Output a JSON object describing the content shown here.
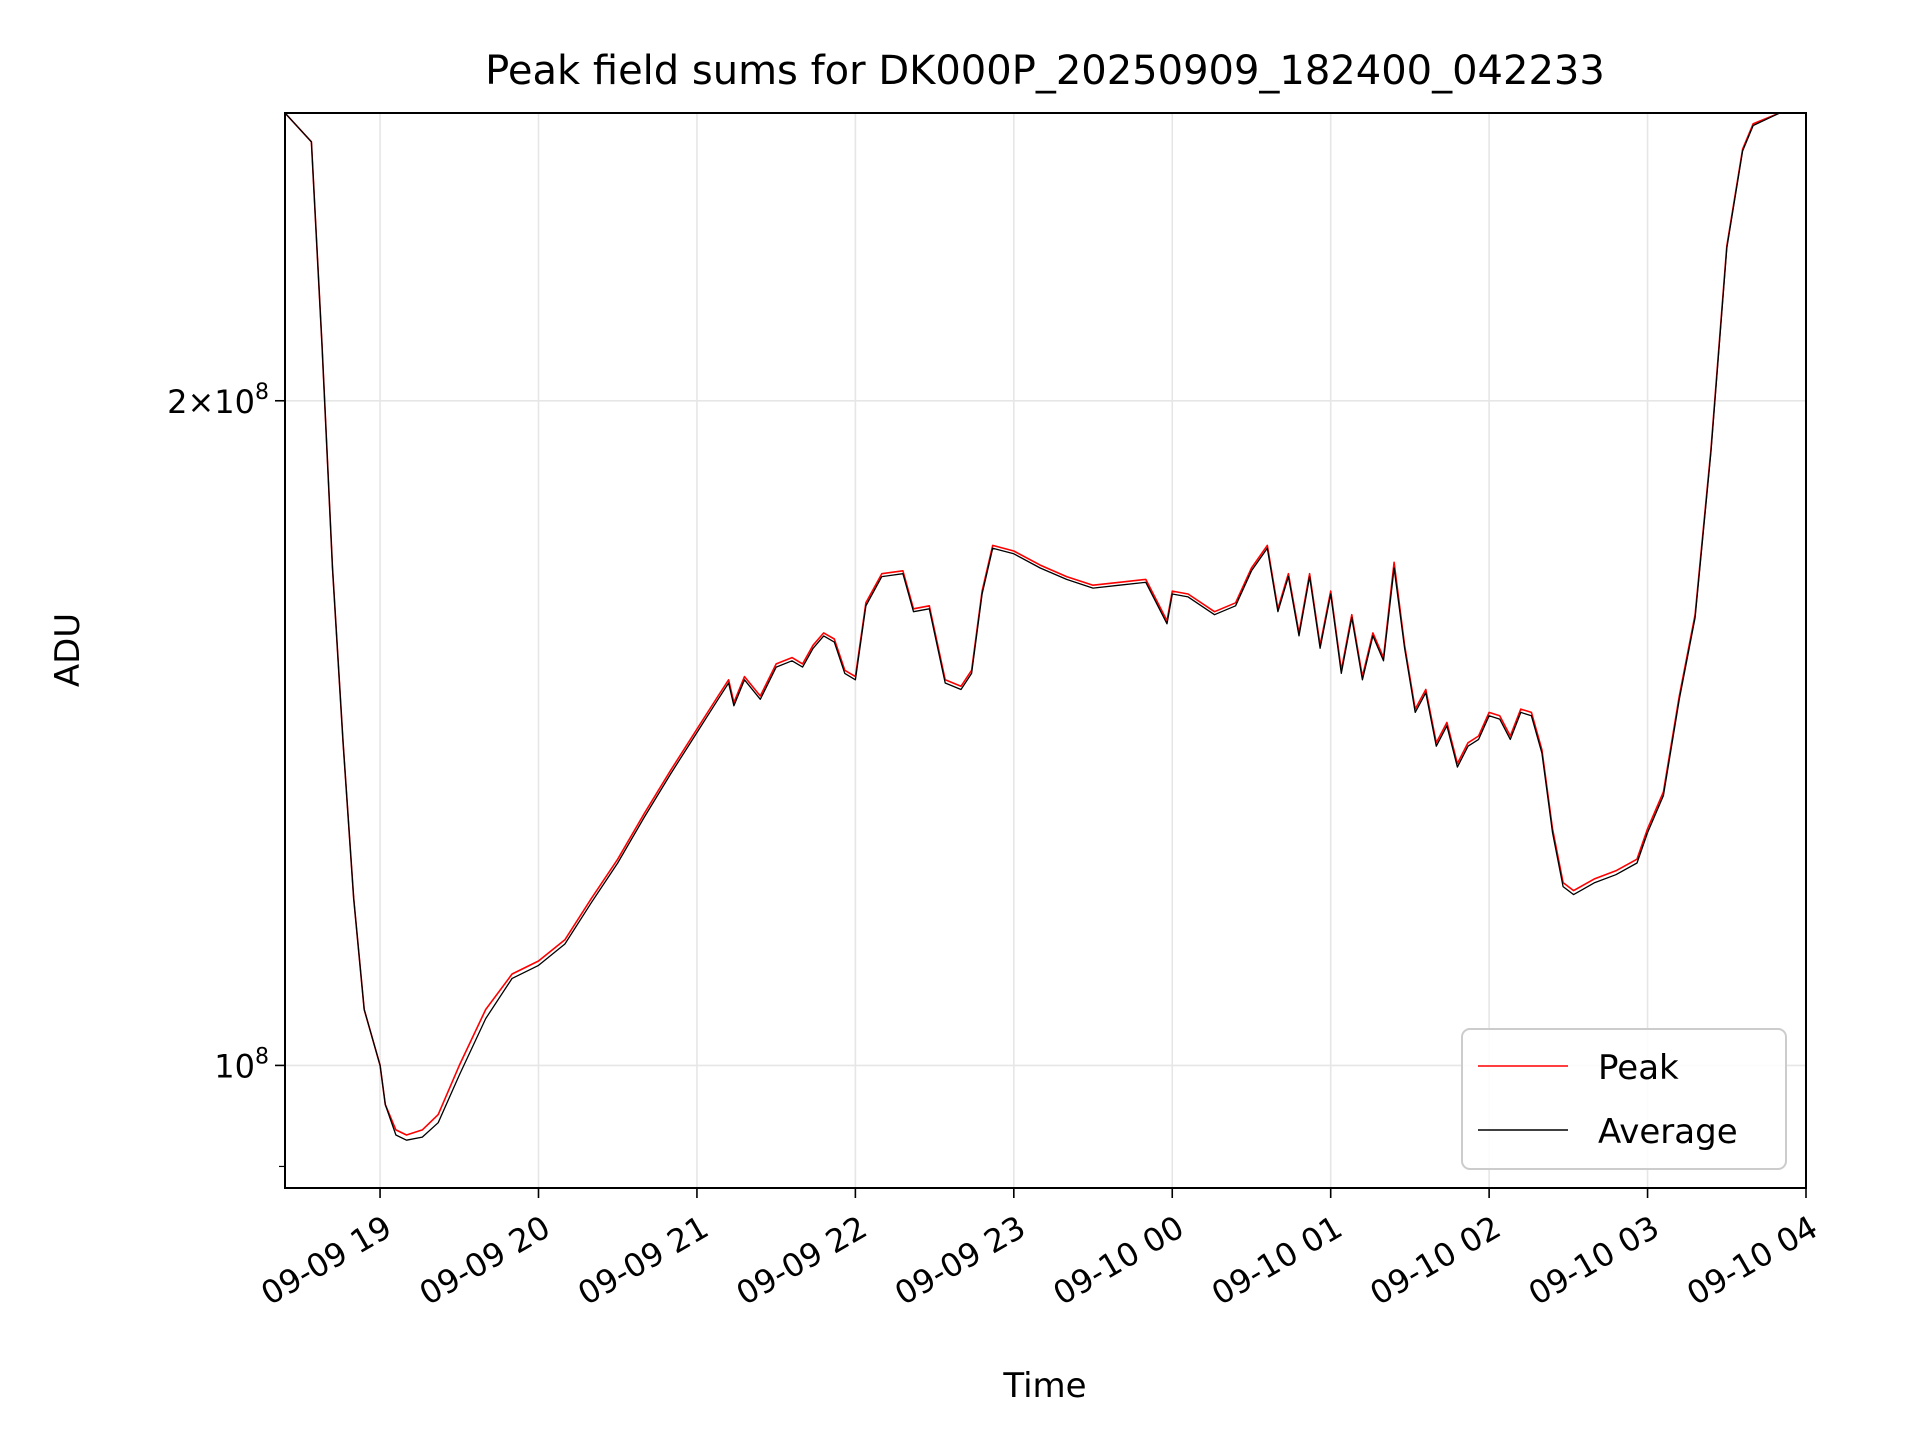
{
  "chart_data": {
    "type": "line",
    "title": "Peak field sums for DK000P_20250909_182400_042233",
    "xlabel": "Time",
    "ylabel": "ADU",
    "yscale": "log",
    "grid": true,
    "legend_position": "lower right",
    "xlim": [
      "2025-09-09 18:24",
      "2025-09-10 04:00"
    ],
    "ylim": [
      88000000,
      270000000
    ],
    "x_ticks": [
      "2025-09-09 19:00",
      "2025-09-09 20:00",
      "2025-09-09 21:00",
      "2025-09-09 22:00",
      "2025-09-09 23:00",
      "2025-09-10 00:00",
      "2025-09-10 01:00",
      "2025-09-10 02:00",
      "2025-09-10 03:00",
      "2025-09-10 04:00"
    ],
    "x_tick_labels": [
      "09-09 19",
      "09-09 20",
      "09-09 21",
      "09-09 22",
      "09-09 23",
      "09-10 00",
      "09-10 01",
      "09-10 02",
      "09-10 03",
      "09-10 04"
    ],
    "y_ticks": [
      {
        "value": 200000000,
        "base": "2×10",
        "exp": "8"
      },
      {
        "value": 100000000,
        "base": "10",
        "exp": "8"
      }
    ],
    "x": [
      "2025-09-09 18:24",
      "2025-09-09 18:34",
      "2025-09-09 18:38",
      "2025-09-09 18:42",
      "2025-09-09 18:46",
      "2025-09-09 18:50",
      "2025-09-09 18:54",
      "2025-09-09 19:00",
      "2025-09-09 19:02",
      "2025-09-09 19:06",
      "2025-09-09 19:10",
      "2025-09-09 19:16",
      "2025-09-09 19:22",
      "2025-09-09 19:30",
      "2025-09-09 19:40",
      "2025-09-09 19:50",
      "2025-09-09 20:00",
      "2025-09-09 20:10",
      "2025-09-09 20:20",
      "2025-09-09 20:30",
      "2025-09-09 20:40",
      "2025-09-09 20:50",
      "2025-09-09 21:00",
      "2025-09-09 21:08",
      "2025-09-09 21:12",
      "2025-09-09 21:14",
      "2025-09-09 21:18",
      "2025-09-09 21:24",
      "2025-09-09 21:30",
      "2025-09-09 21:36",
      "2025-09-09 21:40",
      "2025-09-09 21:44",
      "2025-09-09 21:48",
      "2025-09-09 21:52",
      "2025-09-09 21:56",
      "2025-09-09 22:00",
      "2025-09-09 22:04",
      "2025-09-09 22:10",
      "2025-09-09 22:18",
      "2025-09-09 22:22",
      "2025-09-09 22:28",
      "2025-09-09 22:34",
      "2025-09-09 22:40",
      "2025-09-09 22:44",
      "2025-09-09 22:48",
      "2025-09-09 22:52",
      "2025-09-09 23:00",
      "2025-09-09 23:10",
      "2025-09-09 23:20",
      "2025-09-09 23:30",
      "2025-09-09 23:40",
      "2025-09-09 23:50",
      "2025-09-09 23:58",
      "2025-09-10 00:00",
      "2025-09-10 00:06",
      "2025-09-10 00:16",
      "2025-09-10 00:24",
      "2025-09-10 00:30",
      "2025-09-10 00:36",
      "2025-09-10 00:40",
      "2025-09-10 00:44",
      "2025-09-10 00:48",
      "2025-09-10 00:52",
      "2025-09-10 00:56",
      "2025-09-10 01:00",
      "2025-09-10 01:04",
      "2025-09-10 01:08",
      "2025-09-10 01:12",
      "2025-09-10 01:16",
      "2025-09-10 01:20",
      "2025-09-10 01:24",
      "2025-09-10 01:28",
      "2025-09-10 01:32",
      "2025-09-10 01:36",
      "2025-09-10 01:40",
      "2025-09-10 01:44",
      "2025-09-10 01:48",
      "2025-09-10 01:52",
      "2025-09-10 01:56",
      "2025-09-10 02:00",
      "2025-09-10 02:04",
      "2025-09-10 02:08",
      "2025-09-10 02:12",
      "2025-09-10 02:16",
      "2025-09-10 02:20",
      "2025-09-10 02:24",
      "2025-09-10 02:28",
      "2025-09-10 02:32",
      "2025-09-10 02:40",
      "2025-09-10 02:48",
      "2025-09-10 02:56",
      "2025-09-10 03:00",
      "2025-09-10 03:06",
      "2025-09-10 03:12",
      "2025-09-10 03:18",
      "2025-09-10 03:24",
      "2025-09-10 03:30",
      "2025-09-10 03:36",
      "2025-09-10 03:40",
      "2025-09-10 03:50",
      "2025-09-10 04:00"
    ],
    "series": [
      {
        "name": "Peak",
        "color": "#ff0000",
        "values": [
          270000000,
          262000000,
          212000000,
          168000000,
          140000000,
          119000000,
          106000000,
          100000000,
          96000000,
          93500000,
          93000000,
          93500000,
          95000000,
          100000000,
          106000000,
          110000000,
          111500000,
          114000000,
          119000000,
          124000000,
          130000000,
          136000000,
          142000000,
          147000000,
          149500000,
          146000000,
          150000000,
          147000000,
          152000000,
          153000000,
          152000000,
          155000000,
          157000000,
          156000000,
          151000000,
          150000000,
          162000000,
          167000000,
          167500000,
          161000000,
          161500000,
          149500000,
          148500000,
          151000000,
          164000000,
          172000000,
          171000000,
          168500000,
          166500000,
          165000000,
          165500000,
          166000000,
          159000000,
          164000000,
          163500000,
          160500000,
          162000000,
          168000000,
          172000000,
          161000000,
          167000000,
          157000000,
          167000000,
          155000000,
          164000000,
          151000000,
          160000000,
          150000000,
          157000000,
          153000000,
          169000000,
          155000000,
          145000000,
          148000000,
          140000000,
          143000000,
          137000000,
          140000000,
          141000000,
          144500000,
          144000000,
          141000000,
          145000000,
          144500000,
          139000000,
          128000000,
          121000000,
          120000000,
          121500000,
          122500000,
          124000000,
          128000000,
          133000000,
          147000000,
          160000000,
          190000000,
          235000000,
          260000000,
          267000000,
          270000000,
          270000000
        ]
      },
      {
        "name": "Average",
        "color": "#000000",
        "values": [
          270000000,
          262000000,
          212000000,
          168000000,
          140000000,
          119000000,
          106000000,
          100000000,
          96000000,
          93000000,
          92500000,
          92800000,
          94200000,
          99000000,
          105000000,
          109500000,
          111000000,
          113500000,
          118500000,
          123500000,
          129500000,
          135500000,
          141500000,
          146500000,
          149000000,
          145500000,
          149500000,
          146500000,
          151500000,
          152500000,
          151500000,
          154500000,
          156500000,
          155500000,
          150500000,
          149500000,
          161500000,
          166500000,
          167000000,
          160500000,
          161000000,
          149000000,
          148000000,
          150500000,
          163500000,
          171500000,
          170500000,
          168000000,
          166000000,
          164500000,
          165000000,
          165500000,
          158500000,
          163500000,
          163000000,
          160000000,
          161500000,
          167500000,
          171500000,
          160500000,
          166500000,
          156500000,
          166500000,
          154500000,
          163500000,
          150500000,
          159500000,
          149500000,
          156500000,
          152500000,
          168000000,
          154500000,
          144500000,
          147500000,
          139500000,
          142500000,
          136500000,
          139500000,
          140500000,
          144000000,
          143500000,
          140500000,
          144500000,
          144000000,
          138500000,
          127500000,
          120500000,
          119500000,
          121000000,
          122000000,
          123500000,
          127500000,
          132500000,
          146500000,
          159500000,
          189500000,
          234500000,
          259500000,
          266500000,
          270000000,
          270000000
        ]
      }
    ]
  }
}
